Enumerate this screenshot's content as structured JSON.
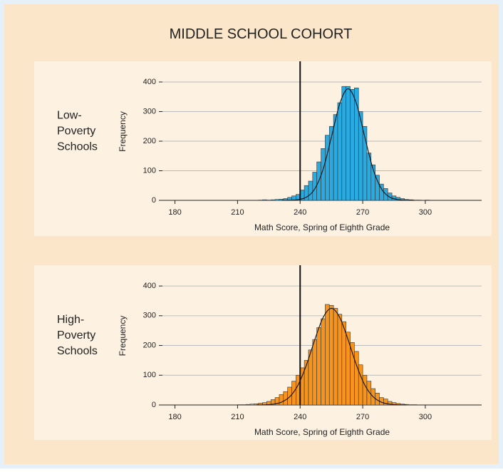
{
  "title": "MIDDLE SCHOOL COHORT",
  "chart_data": [
    {
      "type": "histogram",
      "panel_label": [
        "Low-",
        "Poverty",
        "Schools"
      ],
      "xlabel": "Math Score, Spring of Eighth Grade",
      "ylabel": "Frequency",
      "color": "#29abe2",
      "grid": true,
      "reference_line": 240,
      "xlim": [
        174,
        327
      ],
      "ylim": [
        0,
        465
      ],
      "xticks": [
        180,
        210,
        240,
        270,
        300
      ],
      "yticks": [
        0,
        100,
        200,
        300,
        400
      ],
      "bins": [
        220,
        222,
        224,
        226,
        228,
        230,
        232,
        234,
        236,
        238,
        240,
        242,
        244,
        246,
        248,
        250,
        252,
        254,
        256,
        258,
        260,
        262,
        264,
        266,
        268,
        270,
        272,
        274,
        276,
        278,
        280,
        282,
        284,
        286,
        288,
        290,
        292,
        294,
        296,
        298,
        300,
        302
      ],
      "values": [
        1,
        2,
        1,
        2,
        3,
        4,
        6,
        10,
        15,
        20,
        35,
        50,
        65,
        95,
        130,
        175,
        220,
        250,
        290,
        330,
        385,
        385,
        375,
        380,
        300,
        250,
        160,
        120,
        85,
        55,
        40,
        25,
        15,
        10,
        6,
        3,
        2,
        1,
        1,
        0,
        1
      ],
      "curve": {
        "x": [
          231,
          235,
          239,
          243,
          247,
          251,
          255,
          259,
          263,
          267,
          271,
          275,
          279,
          283,
          287,
          291,
          295
        ],
        "y": [
          0,
          0.4,
          2.3,
          10.8,
          38.7,
          104.8,
          213.5,
          327,
          377,
          327,
          213.5,
          104.8,
          38.7,
          10.8,
          2.3,
          0.4,
          0
        ]
      }
    },
    {
      "type": "histogram",
      "panel_label": [
        "High-",
        "Poverty",
        "Schools"
      ],
      "xlabel": "Math Score, Spring of Eighth Grade",
      "ylabel": "Frequency",
      "color": "#f7941d",
      "grid": true,
      "reference_line": 240,
      "xlim": [
        174,
        327
      ],
      "ylim": [
        0,
        465
      ],
      "xticks": [
        180,
        210,
        240,
        270,
        300
      ],
      "yticks": [
        0,
        100,
        200,
        300,
        400
      ],
      "bins": [
        210,
        212,
        214,
        216,
        218,
        220,
        222,
        224,
        226,
        228,
        230,
        232,
        234,
        236,
        238,
        240,
        242,
        244,
        246,
        248,
        250,
        252,
        254,
        256,
        258,
        260,
        262,
        264,
        266,
        268,
        270,
        272,
        274,
        276,
        278,
        280,
        282,
        284,
        286,
        288,
        290,
        292,
        294,
        296
      ],
      "values": [
        1,
        1,
        2,
        3,
        4,
        6,
        8,
        12,
        18,
        25,
        35,
        45,
        60,
        80,
        100,
        125,
        150,
        185,
        220,
        260,
        290,
        338,
        335,
        325,
        305,
        280,
        245,
        210,
        180,
        135,
        100,
        80,
        55,
        40,
        25,
        20,
        12,
        8,
        5,
        3,
        2,
        1,
        1
      ],
      "curve": {
        "x": [
          219,
          223,
          227,
          231,
          235,
          239,
          243,
          247,
          251,
          255,
          259,
          263,
          267,
          271,
          275,
          279,
          283,
          287,
          291
        ],
        "y": [
          0,
          0.6,
          2.6,
          9.3,
          27.5,
          67,
          134,
          219,
          294,
          325,
          294,
          219,
          134,
          67,
          27.5,
          9.3,
          2.6,
          0.6,
          0
        ]
      }
    }
  ]
}
